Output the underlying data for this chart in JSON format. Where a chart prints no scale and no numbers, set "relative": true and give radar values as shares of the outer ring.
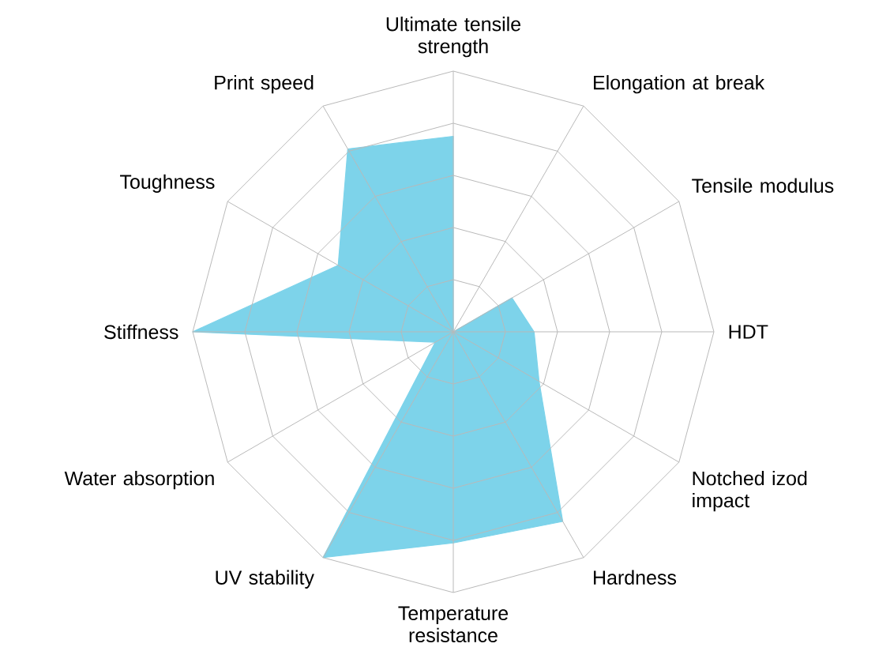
{
  "chart_data": {
    "type": "radar",
    "relative": true,
    "categories": [
      "Ultimate tensile strength",
      "Elongation at break",
      "Tensile modulus",
      "HDT",
      "Notched izod impact",
      "Hardness",
      "Temperature resistance",
      "UV stability",
      "Water absorption",
      "Stiffness",
      "Toughness",
      "Print speed"
    ],
    "series": [
      {
        "color": "#7dd3ea",
        "values": [
          0.75,
          0,
          0.26,
          0.31,
          0.38,
          0.84,
          0.81,
          1.0,
          0.08,
          1.0,
          0.51,
          0.81
        ]
      }
    ]
  }
}
